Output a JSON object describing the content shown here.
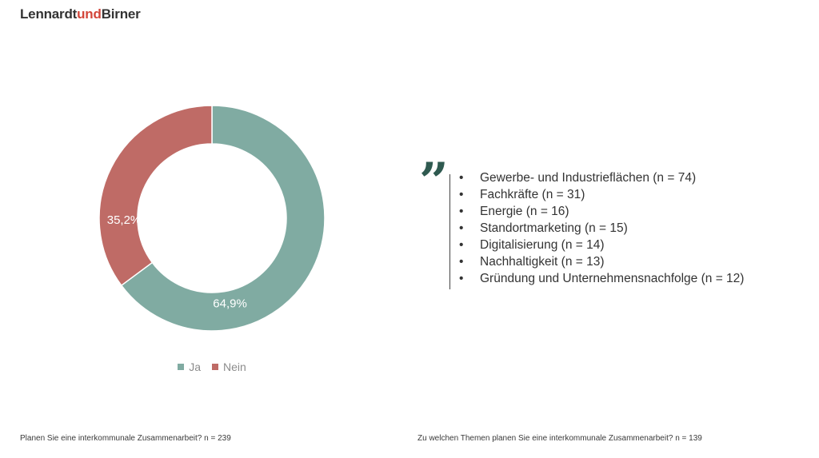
{
  "brand": {
    "part1": "Lennardt",
    "part2": "und",
    "part3": "Birner",
    "accent_color": "#d3463a"
  },
  "chart_data": {
    "type": "pie",
    "style": "donut",
    "categories": [
      "Ja",
      "Nein"
    ],
    "values": [
      64.9,
      35.2
    ],
    "labels": [
      "64,9%",
      "35,2%"
    ],
    "colors": [
      "#80aba2",
      "#bf6b66"
    ],
    "legend": "bottom"
  },
  "topics": [
    "Gewerbe- und Industrieflächen (n = 74)",
    "Fachkräfte (n = 31)",
    "Energie (n = 16)",
    "Standortmarketing (n = 15)",
    "Digitalisierung (n = 14)",
    "Nachhaltigkeit (n = 13)",
    "Gründung und Unternehmensnachfolge (n = 12)"
  ],
  "quote_mark": "”",
  "bullet": "•",
  "footnotes": {
    "left": "Planen Sie eine interkommunale Zusammenarbeit? n = 239",
    "right": "Zu welchen Themen planen Sie eine interkommunale Zusammenarbeit? n = 139"
  }
}
